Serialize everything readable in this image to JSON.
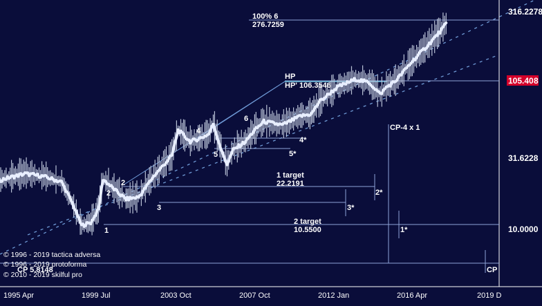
{
  "chart_data": {
    "type": "line",
    "title": "",
    "xlabel": "",
    "ylabel": "",
    "y_scale": "log",
    "x_ticks": [
      "1995 Apr",
      "1999 Jul",
      "2003 Oct",
      "2007 Oct",
      "2012 Jan",
      "2016 Apr",
      "2019 D"
    ],
    "y_ticks": [
      "316.2278",
      "31.6228",
      "10.0000"
    ],
    "price_marker": {
      "label": "105.40",
      "suffix": "8",
      "color": "#d4002a"
    },
    "series": [
      {
        "color": "#e8eeff",
        "x": [
          "1993-06",
          "1994-06",
          "1995-04",
          "1996-06",
          "1997-06",
          "1998-06",
          "1999-01",
          "1999-07",
          "2000-01",
          "2000-06",
          "2000-09",
          "2001-06",
          "2001-12",
          "2002-08",
          "2002-10",
          "2003-06",
          "2004-06",
          "2004-10",
          "2005-06",
          "2005-12",
          "2006-06",
          "2006-09",
          "2007-03",
          "2007-06",
          "2007-10",
          "2008-06",
          "2008-12",
          "2009-06",
          "2010-06",
          "2011-06",
          "2012-01",
          "2012-06",
          "2013-06",
          "2014-06",
          "2015-03",
          "2015-10",
          "2016-02",
          "2016-08",
          "2017-06",
          "2018-06",
          "2019-01",
          "2019-05"
        ],
        "y": [
          21,
          20,
          22,
          24,
          23,
          21,
          15,
          10.5,
          11,
          13.5,
          22,
          18,
          16,
          16.5,
          17.5,
          23,
          32,
          48,
          40,
          42,
          45,
          53,
          33,
          28,
          35,
          40,
          48,
          55,
          52,
          60,
          62,
          75,
          95,
          108,
          102,
          85,
          95,
          105,
          140,
          190,
          230,
          260
        ]
      }
    ],
    "fibo_projection": {
      "label": "100% 6",
      "value": "276.7259"
    },
    "high_point": {
      "label": "HP",
      "value_label": "HP' 106.3546"
    },
    "targets": [
      {
        "label": "1 target",
        "value": "22.2191"
      },
      {
        "label": "2 target",
        "value": "10.5500"
      }
    ],
    "cp_labels": [
      "CP-4 x 1",
      "CP 5.8148",
      "CP"
    ],
    "wave_labels": [
      "1",
      "2",
      "3",
      "4",
      "5",
      "6",
      "1*",
      "2*",
      "3*",
      "4*",
      "5*"
    ]
  },
  "copyright": [
    "© 1996 - 2019 tactica adversa",
    "© 1996 - 2019 protoforma",
    "© 2010 - 2019 skilful pro"
  ]
}
